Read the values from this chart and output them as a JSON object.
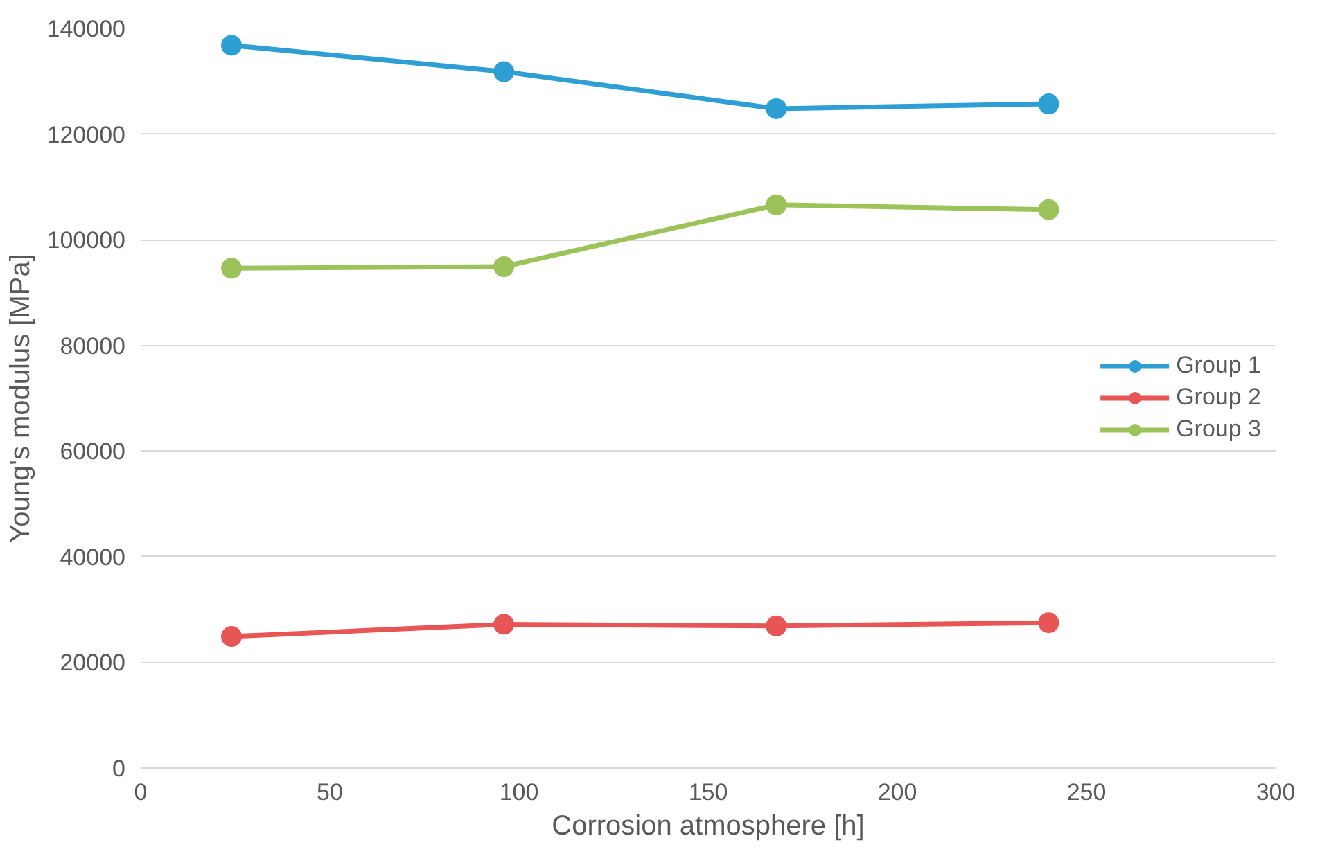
{
  "chart_data": {
    "type": "line",
    "xlabel": "Corrosion atmosphere [h]",
    "ylabel": "Young's modulus [MPa]",
    "x": [
      24,
      96,
      168,
      240
    ],
    "series": [
      {
        "name": "Group 1",
        "color": "#2e9fd4",
        "values": [
          136800,
          131800,
          124800,
          125700
        ]
      },
      {
        "name": "Group 2",
        "color": "#e85555",
        "values": [
          24900,
          27200,
          26900,
          27500
        ]
      },
      {
        "name": "Group 3",
        "color": "#9bc35a",
        "values": [
          94600,
          94900,
          106600,
          105700
        ]
      }
    ],
    "xlim": [
      0,
      300
    ],
    "xticks": [
      0,
      50,
      100,
      150,
      200,
      250,
      300
    ],
    "ylim": [
      0,
      140000
    ],
    "yticks": [
      0,
      20000,
      40000,
      60000,
      80000,
      100000,
      120000,
      140000
    ],
    "grid": "y",
    "legend": "right",
    "marker": "circle",
    "line_style": "solid"
  }
}
